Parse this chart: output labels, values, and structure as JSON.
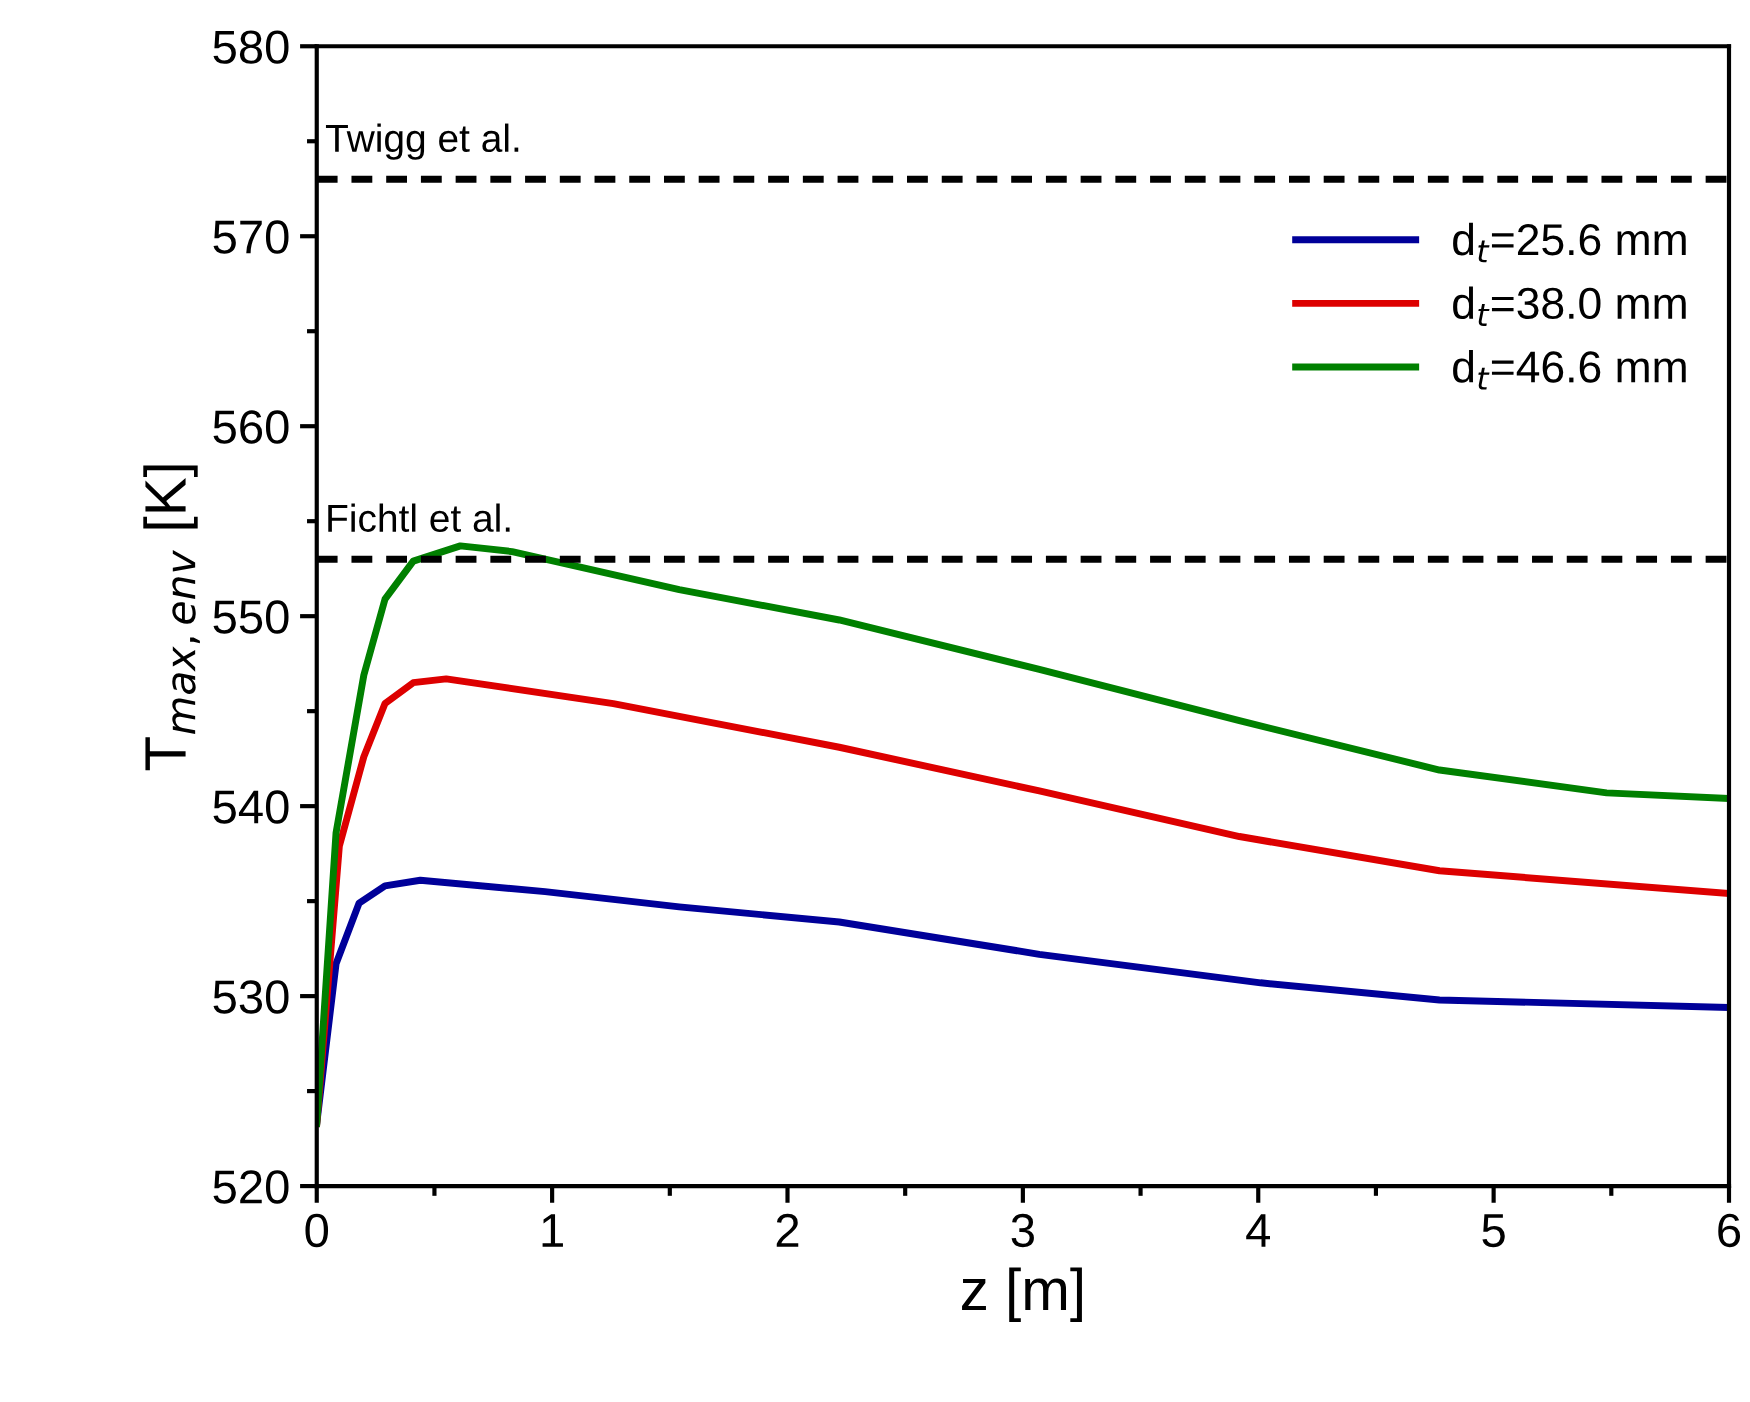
{
  "chart_data": {
    "type": "line",
    "xlabel": "z [m]",
    "ylabel": "T$_{max,env}$ [K]",
    "xlim": [
      0,
      6
    ],
    "xticks": [
      0,
      1,
      2,
      3,
      4,
      5,
      6
    ],
    "ylim": [
      520,
      580
    ],
    "yticks": [
      520,
      530,
      540,
      550,
      560,
      570,
      580
    ],
    "grid": false,
    "legend": "top right",
    "line_style": "solid",
    "marker": "none",
    "series": [
      {
        "name": "d$_{t}$=25.6 mm",
        "color": "#000099",
        "x": [
          0,
          0.082,
          0.18,
          0.29,
          0.44,
          0.97,
          1.54,
          2.22,
          3.07,
          4.01,
          4.77,
          6
        ],
        "values": [
          523.3,
          531.7,
          534.9,
          535.8,
          536.1,
          535.5,
          534.7,
          533.9,
          532.2,
          530.7,
          529.8,
          529.4
        ]
      },
      {
        "name": "d$_{t}$=38.0 mm",
        "color": "#dd0000",
        "x": [
          0,
          0.096,
          0.2,
          0.29,
          0.41,
          0.55,
          1.26,
          2.22,
          3.07,
          3.92,
          4.77,
          6
        ],
        "values": [
          523.3,
          537.9,
          542.6,
          545.4,
          546.5,
          546.7,
          545.4,
          543.1,
          540.8,
          538.4,
          536.6,
          535.4
        ]
      },
      {
        "name": "d$_{t}$=46.6 mm",
        "color": "#008000",
        "x": [
          0,
          0.082,
          0.2,
          0.29,
          0.41,
          0.61,
          0.83,
          1.54,
          2.22,
          3.07,
          3.92,
          4.77,
          5.48,
          6
        ],
        "values": [
          523.3,
          538.6,
          546.9,
          550.9,
          552.9,
          553.7,
          553.4,
          551.4,
          549.8,
          547.2,
          544.5,
          541.9,
          540.7,
          540.4
        ]
      }
    ],
    "ref_lines": [
      {
        "axis": "y",
        "value": 573,
        "label": "Twigg et al.",
        "color": "#000000",
        "line_style": "dashed"
      },
      {
        "axis": "y",
        "value": 553,
        "label": "Fichtl et al.",
        "color": "#000000",
        "line_style": "dashed"
      }
    ]
  }
}
